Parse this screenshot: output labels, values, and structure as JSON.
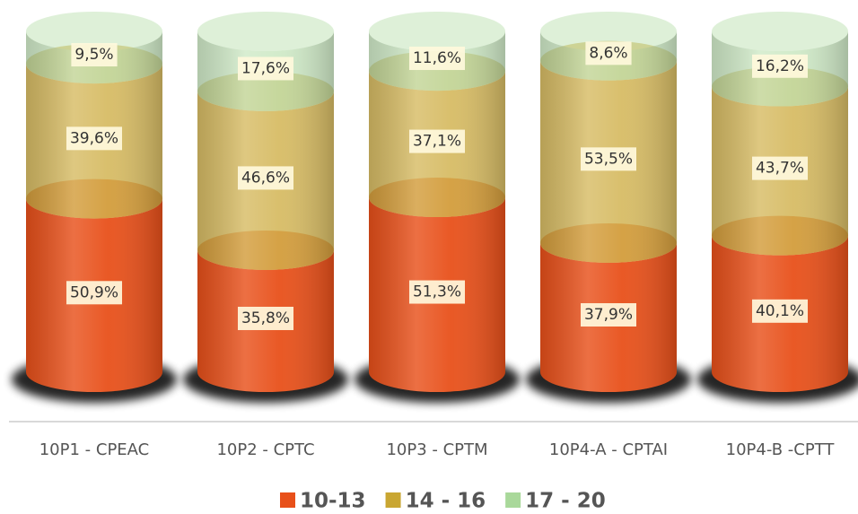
{
  "chart_data": {
    "type": "bar",
    "stacked": true,
    "categories": [
      "10P1 - CPEAC",
      "10P2 - CPTC",
      "10P3 - CPTM",
      "10P4-A - CPTAI",
      "10P4-B -CPTT"
    ],
    "series": [
      {
        "name": "10-13",
        "color": "#e8501a",
        "values": [
          50.9,
          35.8,
          51.3,
          37.9,
          40.1
        ],
        "value_labels": [
          "50,9%",
          "35,8%",
          "51,3%",
          "37,9%",
          "40,1%"
        ]
      },
      {
        "name": "14 - 16",
        "color": "#c9a632",
        "values": [
          39.6,
          46.6,
          37.1,
          53.5,
          43.7
        ],
        "value_labels": [
          "39,6%",
          "46,6%",
          "37,1%",
          "53,5%",
          "43,7%"
        ]
      },
      {
        "name": "17 - 20",
        "color": "#a9d89a",
        "values": [
          9.5,
          17.6,
          11.6,
          8.6,
          16.2
        ],
        "value_labels": [
          "9,5%",
          "17,6%",
          "11,6%",
          "8,6%",
          "16,2%"
        ]
      }
    ],
    "ylim": [
      0,
      100
    ]
  }
}
